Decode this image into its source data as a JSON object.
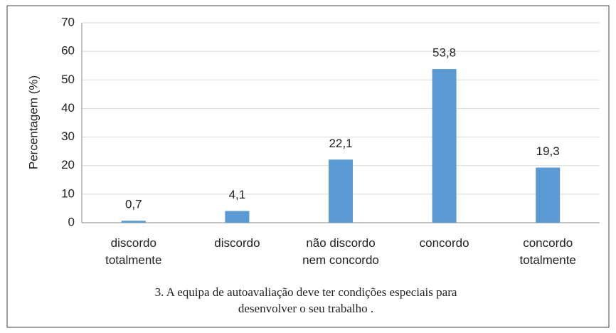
{
  "chart_data": {
    "type": "bar",
    "y_label": "Percentagem (%)",
    "categories": [
      "discordo\ntotalmente",
      "discordo",
      "não discordo\nnem concordo",
      "concordo",
      "concordo\ntotalmente"
    ],
    "values": [
      0.7,
      4.1,
      22.1,
      53.8,
      19.3
    ],
    "value_labels": [
      "0,7",
      "4,1",
      "22,1",
      "53,8",
      "19,3"
    ],
    "color": "#5b9bd5",
    "ylim": [
      0,
      70
    ],
    "yticks": [
      0,
      10,
      20,
      30,
      40,
      50,
      60,
      70
    ],
    "grid": true,
    "caption": [
      "3. A equipa de autoavaliação deve ter condições especiais para",
      "desenvolver o seu trabalho ."
    ]
  }
}
